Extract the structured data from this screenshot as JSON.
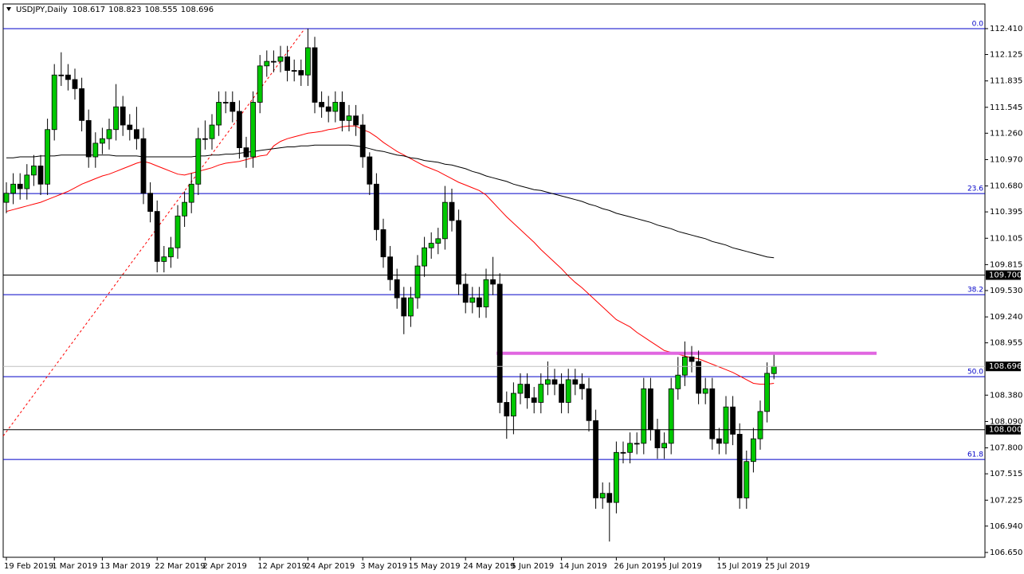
{
  "chart_data": {
    "type": "candlestick",
    "symbol": "USDJPY,Daily",
    "categories": [
      "19 Feb 2019",
      null,
      null,
      null,
      null,
      null,
      null,
      "1 Mar 2019",
      null,
      null,
      null,
      null,
      null,
      null,
      "13 Mar 2019",
      null,
      null,
      null,
      null,
      null,
      null,
      null,
      "22 Mar 2019",
      null,
      null,
      null,
      null,
      null,
      null,
      "2 Apr 2019",
      null,
      null,
      null,
      null,
      null,
      null,
      null,
      "12 Apr 2019",
      null,
      null,
      null,
      null,
      null,
      null,
      "24 Apr 2019",
      null,
      null,
      null,
      null,
      null,
      null,
      null,
      "3 May 2019",
      null,
      null,
      null,
      null,
      null,
      null,
      "15 May 2019",
      null,
      null,
      null,
      null,
      null,
      null,
      null,
      "24 May 2019",
      null,
      null,
      null,
      null,
      null,
      null,
      "5 Jun 2019",
      null,
      null,
      null,
      null,
      null,
      null,
      "14 Jun 2019",
      null,
      null,
      null,
      null,
      null,
      null,
      null,
      "26 Jun 2019",
      null,
      null,
      null,
      null,
      null,
      null,
      "5 Jul 2019",
      null,
      null,
      null,
      null,
      null,
      null,
      null,
      "15 Jul 2019",
      null,
      null,
      null,
      null,
      null,
      null,
      "25 Jul 2019",
      null
    ],
    "candles": {
      "up_color": "#00c800",
      "down_color": "#000000",
      "open": [
        110.5,
        110.6,
        110.7,
        110.65,
        110.8,
        110.9,
        110.7,
        111.3,
        111.9,
        111.9,
        111.85,
        111.75,
        111.4,
        111.0,
        111.15,
        111.2,
        111.3,
        111.55,
        111.35,
        111.3,
        111.2,
        110.6,
        110.4,
        109.85,
        109.9,
        110.0,
        110.35,
        110.5,
        110.7,
        111.2,
        111.2,
        111.35,
        111.6,
        111.6,
        111.5,
        111.1,
        111.0,
        111.6,
        112.0,
        112.05,
        112.05,
        112.1,
        111.95,
        111.95,
        111.9,
        112.2,
        111.6,
        111.55,
        111.5,
        111.6,
        111.4,
        111.45,
        111.35,
        111.0,
        110.7,
        110.2,
        109.9,
        109.65,
        109.45,
        109.25,
        109.45,
        109.8,
        110.0,
        110.05,
        110.1,
        110.5,
        110.3,
        109.6,
        109.4,
        109.45,
        109.35,
        109.65,
        109.6,
        108.3,
        108.15,
        108.4,
        108.5,
        108.35,
        108.3,
        108.5,
        108.55,
        108.5,
        108.3,
        108.55,
        108.5,
        108.45,
        108.1,
        107.25,
        107.3,
        107.2,
        107.75,
        107.75,
        107.85,
        107.85,
        108.45,
        108.0,
        107.8,
        107.85,
        108.45,
        108.6,
        108.8,
        108.75,
        108.4,
        108.45,
        107.9,
        107.85,
        108.25,
        107.95,
        107.25,
        107.65,
        107.9,
        108.2,
        108.617
      ],
      "high": [
        110.72,
        110.82,
        110.82,
        110.92,
        111.02,
        111.02,
        111.42,
        112.02,
        112.15,
        112.02,
        111.97,
        111.87,
        111.52,
        111.27,
        111.32,
        111.42,
        111.8,
        111.67,
        111.47,
        111.55,
        111.32,
        110.72,
        110.52,
        110.02,
        110.12,
        110.47,
        110.62,
        110.82,
        111.32,
        111.4,
        111.47,
        111.72,
        111.72,
        111.72,
        111.62,
        111.22,
        111.72,
        112.12,
        112.17,
        112.17,
        112.22,
        112.22,
        112.07,
        112.07,
        112.41,
        112.32,
        111.72,
        111.67,
        111.72,
        111.72,
        111.57,
        111.57,
        111.47,
        111.05,
        110.82,
        110.32,
        110.02,
        109.77,
        109.57,
        109.57,
        109.92,
        110.12,
        110.17,
        110.22,
        110.68,
        110.65,
        110.42,
        109.72,
        109.57,
        109.57,
        109.77,
        109.9,
        109.72,
        108.42,
        108.52,
        108.62,
        108.62,
        108.47,
        108.62,
        108.75,
        108.67,
        108.62,
        108.67,
        108.67,
        108.62,
        108.57,
        108.22,
        107.42,
        107.42,
        107.87,
        107.87,
        107.97,
        107.97,
        108.57,
        108.57,
        108.12,
        107.97,
        108.57,
        108.8,
        108.97,
        108.92,
        108.87,
        108.57,
        108.57,
        108.02,
        108.37,
        108.37,
        108.07,
        107.77,
        108.02,
        108.32,
        108.74,
        108.823
      ],
      "low": [
        110.38,
        110.48,
        110.53,
        110.53,
        110.68,
        110.58,
        110.58,
        111.18,
        111.78,
        111.73,
        111.63,
        111.28,
        110.88,
        110.88,
        111.03,
        111.08,
        111.18,
        111.23,
        111.18,
        111.08,
        110.48,
        110.28,
        109.73,
        109.73,
        109.78,
        109.88,
        110.23,
        110.38,
        110.58,
        111.08,
        111.08,
        111.23,
        111.48,
        111.38,
        110.98,
        110.88,
        110.88,
        111.48,
        111.88,
        111.93,
        111.93,
        111.83,
        111.83,
        111.78,
        111.78,
        111.48,
        111.43,
        111.38,
        111.38,
        111.28,
        111.28,
        111.23,
        110.88,
        110.58,
        110.08,
        109.78,
        109.53,
        109.33,
        109.05,
        109.13,
        109.33,
        109.68,
        109.88,
        109.93,
        109.98,
        110.18,
        109.48,
        109.28,
        109.28,
        109.23,
        109.23,
        109.48,
        108.18,
        107.9,
        107.95,
        108.28,
        108.23,
        108.18,
        108.18,
        108.38,
        108.38,
        108.18,
        108.18,
        108.38,
        108.33,
        107.98,
        107.13,
        107.13,
        106.77,
        107.08,
        107.63,
        107.63,
        107.73,
        107.73,
        107.88,
        107.68,
        107.68,
        107.73,
        108.33,
        108.48,
        108.63,
        108.28,
        108.28,
        107.78,
        107.73,
        107.73,
        107.83,
        107.13,
        107.13,
        107.53,
        107.78,
        108.08,
        108.555
      ],
      "close": [
        110.6,
        110.7,
        110.65,
        110.8,
        110.9,
        110.7,
        111.3,
        111.9,
        111.9,
        111.85,
        111.75,
        111.4,
        111.0,
        111.15,
        111.2,
        111.3,
        111.55,
        111.35,
        111.3,
        111.2,
        110.6,
        110.4,
        109.85,
        109.9,
        110.0,
        110.35,
        110.5,
        110.7,
        111.2,
        111.2,
        111.35,
        111.6,
        111.6,
        111.5,
        111.1,
        111.0,
        111.6,
        112.0,
        112.05,
        112.05,
        112.1,
        111.95,
        111.95,
        111.9,
        112.2,
        111.6,
        111.55,
        111.5,
        111.6,
        111.4,
        111.45,
        111.35,
        111.0,
        110.7,
        110.2,
        109.9,
        109.65,
        109.45,
        109.25,
        109.45,
        109.8,
        110.0,
        110.05,
        110.1,
        110.5,
        110.3,
        109.6,
        109.4,
        109.45,
        109.35,
        109.65,
        109.6,
        108.3,
        108.15,
        108.4,
        108.5,
        108.35,
        108.3,
        108.5,
        108.55,
        108.5,
        108.3,
        108.55,
        108.5,
        108.45,
        108.1,
        107.25,
        107.3,
        107.2,
        107.75,
        107.75,
        107.85,
        107.85,
        108.45,
        108.0,
        107.8,
        107.85,
        108.45,
        108.6,
        108.8,
        108.75,
        108.4,
        108.45,
        107.9,
        107.85,
        108.25,
        107.95,
        107.25,
        107.65,
        107.9,
        108.2,
        108.62,
        108.696
      ]
    },
    "moving_averages": [
      {
        "color": "#ff0000",
        "values": [
          110.4,
          110.42,
          110.44,
          110.46,
          110.48,
          110.5,
          110.53,
          110.56,
          110.59,
          110.62,
          110.66,
          110.7,
          110.73,
          110.76,
          110.79,
          110.81,
          110.84,
          110.87,
          110.9,
          110.93,
          110.95,
          110.93,
          110.9,
          110.87,
          110.84,
          110.81,
          110.8,
          110.82,
          110.84,
          110.86,
          110.88,
          110.91,
          110.93,
          110.94,
          110.95,
          110.97,
          110.99,
          111.01,
          111.02,
          111.12,
          111.17,
          111.2,
          111.22,
          111.24,
          111.26,
          111.27,
          111.28,
          111.3,
          111.31,
          111.33,
          111.34,
          111.34,
          111.3,
          111.27,
          111.22,
          111.16,
          111.11,
          111.06,
          111.02,
          110.98,
          110.94,
          110.9,
          110.87,
          110.84,
          110.8,
          110.76,
          110.72,
          110.69,
          110.66,
          110.63,
          110.58,
          110.5,
          110.42,
          110.34,
          110.27,
          110.2,
          110.13,
          110.06,
          109.98,
          109.91,
          109.84,
          109.77,
          109.69,
          109.62,
          109.56,
          109.49,
          109.42,
          109.35,
          109.28,
          109.21,
          109.17,
          109.13,
          109.07,
          109.02,
          108.97,
          108.92,
          108.87,
          108.85,
          108.83,
          108.81,
          108.79,
          108.78,
          108.75,
          108.72,
          108.69,
          108.66,
          108.63,
          108.59,
          108.55,
          108.51,
          108.5,
          108.5,
          108.51
        ]
      },
      {
        "color": "#000000",
        "values": [
          110.99,
          110.99,
          111.0,
          111.0,
          111.0,
          111.01,
          111.01,
          111.01,
          111.02,
          111.02,
          111.02,
          111.02,
          111.02,
          111.02,
          111.02,
          111.02,
          111.01,
          111.01,
          111.01,
          111.01,
          111.0,
          111.0,
          111.0,
          111.0,
          111.0,
          111.0,
          111.0,
          111.0,
          111.01,
          111.01,
          111.02,
          111.02,
          111.03,
          111.03,
          111.04,
          111.05,
          111.06,
          111.07,
          111.08,
          111.09,
          111.1,
          111.11,
          111.11,
          111.12,
          111.12,
          111.13,
          111.13,
          111.13,
          111.13,
          111.13,
          111.13,
          111.12,
          111.11,
          111.09,
          111.07,
          111.06,
          111.04,
          111.02,
          111.01,
          110.99,
          110.98,
          110.96,
          110.95,
          110.94,
          110.92,
          110.91,
          110.89,
          110.87,
          110.84,
          110.82,
          110.79,
          110.77,
          110.75,
          110.73,
          110.7,
          110.68,
          110.66,
          110.64,
          110.63,
          110.61,
          110.59,
          110.57,
          110.55,
          110.53,
          110.51,
          110.48,
          110.46,
          110.43,
          110.41,
          110.38,
          110.36,
          110.34,
          110.32,
          110.3,
          110.28,
          110.25,
          110.23,
          110.21,
          110.18,
          110.16,
          110.14,
          110.12,
          110.1,
          110.07,
          110.05,
          110.03,
          110.0,
          109.98,
          109.96,
          109.94,
          109.92,
          109.9,
          109.89
        ]
      }
    ],
    "fib_levels": [
      {
        "label": "0.0",
        "price": 112.41
      },
      {
        "label": "23.6",
        "price": 110.597
      },
      {
        "label": "38.2",
        "price": 109.485
      },
      {
        "label": "50.0",
        "price": 108.583
      },
      {
        "label": "61.8",
        "price": 107.673
      }
    ],
    "fib_color": "#0000c8",
    "price_levels": [
      {
        "value": 109.7,
        "label": "109.700"
      },
      {
        "value": 108.0,
        "label": "108.000"
      }
    ],
    "resistance": {
      "price": 108.84,
      "color": "#e066e0"
    },
    "trendline": {
      "start": 107.93,
      "end": 112.41,
      "color": "#ff0000"
    },
    "ylim": [
      106.597,
      112.681
    ],
    "yticks": [
      {
        "value": 112.41,
        "label": "112.410"
      },
      112.125,
      111.835,
      111.545,
      {
        "value": 111.26,
        "label": "111.260"
      },
      {
        "value": 110.97,
        "label": "110.970"
      },
      {
        "value": 110.68,
        "label": "110.680"
      },
      110.395,
      110.105,
      109.815,
      {
        "value": 109.53,
        "label": "109.530"
      },
      {
        "value": 109.24,
        "label": "109.240"
      },
      108.955,
      {
        "value": 108.38,
        "label": "108.380"
      },
      {
        "value": 108.09,
        "label": "108.090"
      },
      {
        "value": 107.8,
        "label": "107.800"
      },
      107.515,
      107.225,
      {
        "value": 106.94,
        "label": "106.940"
      },
      {
        "value": 106.65,
        "label": "106.650"
      }
    ]
  }
}
